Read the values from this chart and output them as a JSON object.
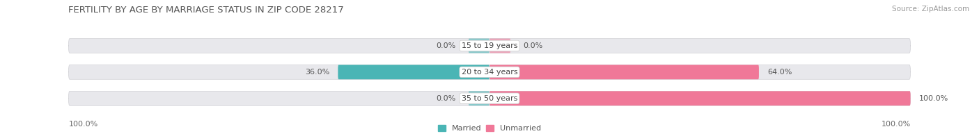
{
  "title": "FERTILITY BY AGE BY MARRIAGE STATUS IN ZIP CODE 28217",
  "source": "Source: ZipAtlas.com",
  "categories": [
    "15 to 19 years",
    "20 to 34 years",
    "35 to 50 years"
  ],
  "married": [
    0.0,
    36.0,
    0.0
  ],
  "unmarried": [
    0.0,
    64.0,
    100.0
  ],
  "married_color": "#4ab5b5",
  "unmarried_color": "#f07898",
  "bar_bg_color": "#e8e8ec",
  "bar_border_color": "#d8d8dc",
  "figsize": [
    14.06,
    1.96
  ],
  "dpi": 100,
  "title_fontsize": 9.5,
  "source_fontsize": 7.5,
  "bar_label_fontsize": 8,
  "cat_label_fontsize": 8,
  "legend_fontsize": 8,
  "left_label": "100.0%",
  "right_label": "100.0%"
}
